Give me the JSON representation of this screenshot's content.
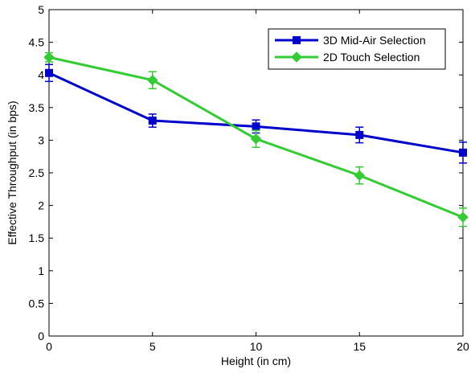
{
  "chart_data": {
    "type": "line",
    "title": "",
    "xlabel": "Height (in cm)",
    "ylabel": "Effective Throughput (in bps)",
    "xlim": [
      0,
      20
    ],
    "ylim": [
      0,
      5
    ],
    "xticks": [
      0,
      5,
      10,
      15,
      20
    ],
    "yticks": [
      0,
      0.5,
      1,
      1.5,
      2,
      2.5,
      3,
      3.5,
      4,
      4.5,
      5
    ],
    "xtick_labels": [
      "0",
      "5",
      "10",
      "15",
      "20"
    ],
    "ytick_labels": [
      "0",
      "0.5",
      "1",
      "1.5",
      "2",
      "2.5",
      "3",
      "3.5",
      "4",
      "4.5",
      "5"
    ],
    "grid": false,
    "legend_position": "top-right",
    "x": [
      0,
      5,
      10,
      15,
      20
    ],
    "series": [
      {
        "name": "3D Mid-Air Selection",
        "color": "#0000cc",
        "marker": "square",
        "values": [
          4.03,
          3.3,
          3.21,
          3.08,
          2.81
        ],
        "errors": [
          0.13,
          0.1,
          0.1,
          0.12,
          0.16
        ]
      },
      {
        "name": "2D Touch Selection",
        "color": "#33cc33",
        "marker": "diamond",
        "values": [
          4.27,
          3.92,
          3.02,
          2.46,
          1.82
        ],
        "errors": [
          0.07,
          0.13,
          0.13,
          0.13,
          0.14
        ]
      }
    ]
  }
}
